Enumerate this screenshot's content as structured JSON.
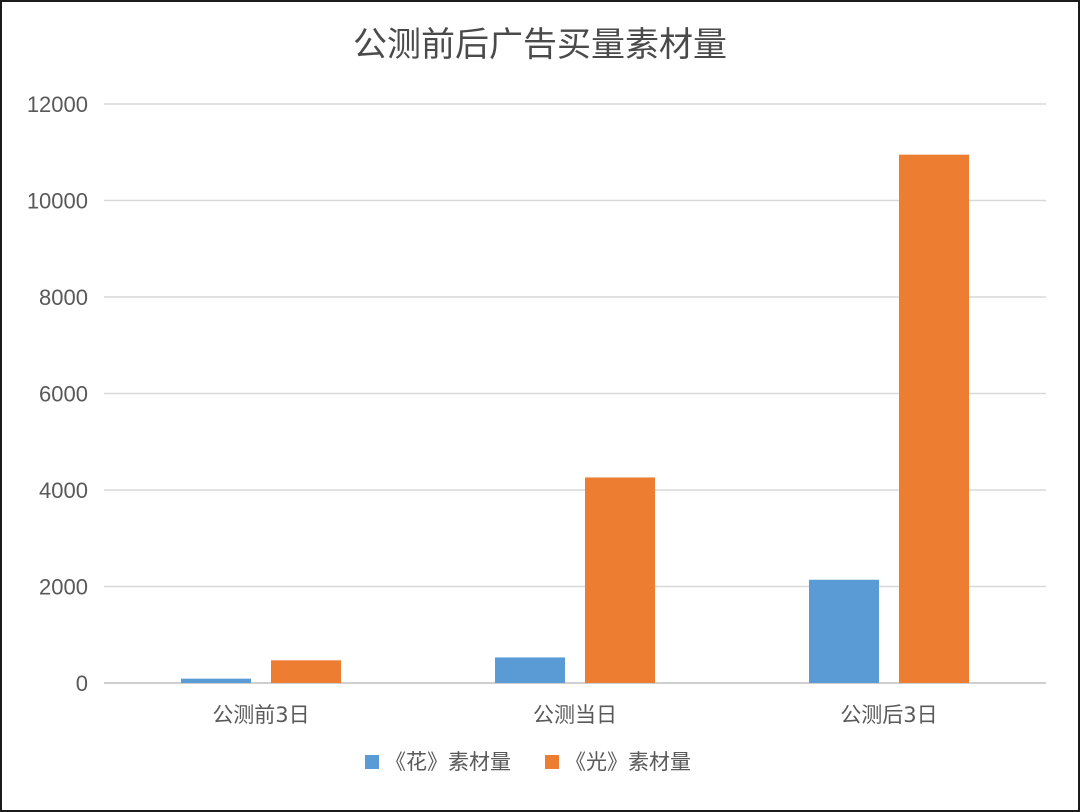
{
  "chart_data": {
    "type": "bar",
    "title": "公测前后广告买量素材量",
    "categories": [
      "公测前3日",
      "公测当日",
      "公测后3日"
    ],
    "series": [
      {
        "name": "《花》素材量",
        "color": "#5b9bd5",
        "values": [
          90,
          530,
          2140
        ]
      },
      {
        "name": "《光》素材量",
        "color": "#ed7d31",
        "values": [
          470,
          4260,
          10950
        ]
      }
    ],
    "ylim": [
      0,
      12000
    ],
    "yticks": [
      0,
      2000,
      4000,
      6000,
      8000,
      10000,
      12000
    ],
    "grid": true,
    "legend_position": "bottom"
  }
}
